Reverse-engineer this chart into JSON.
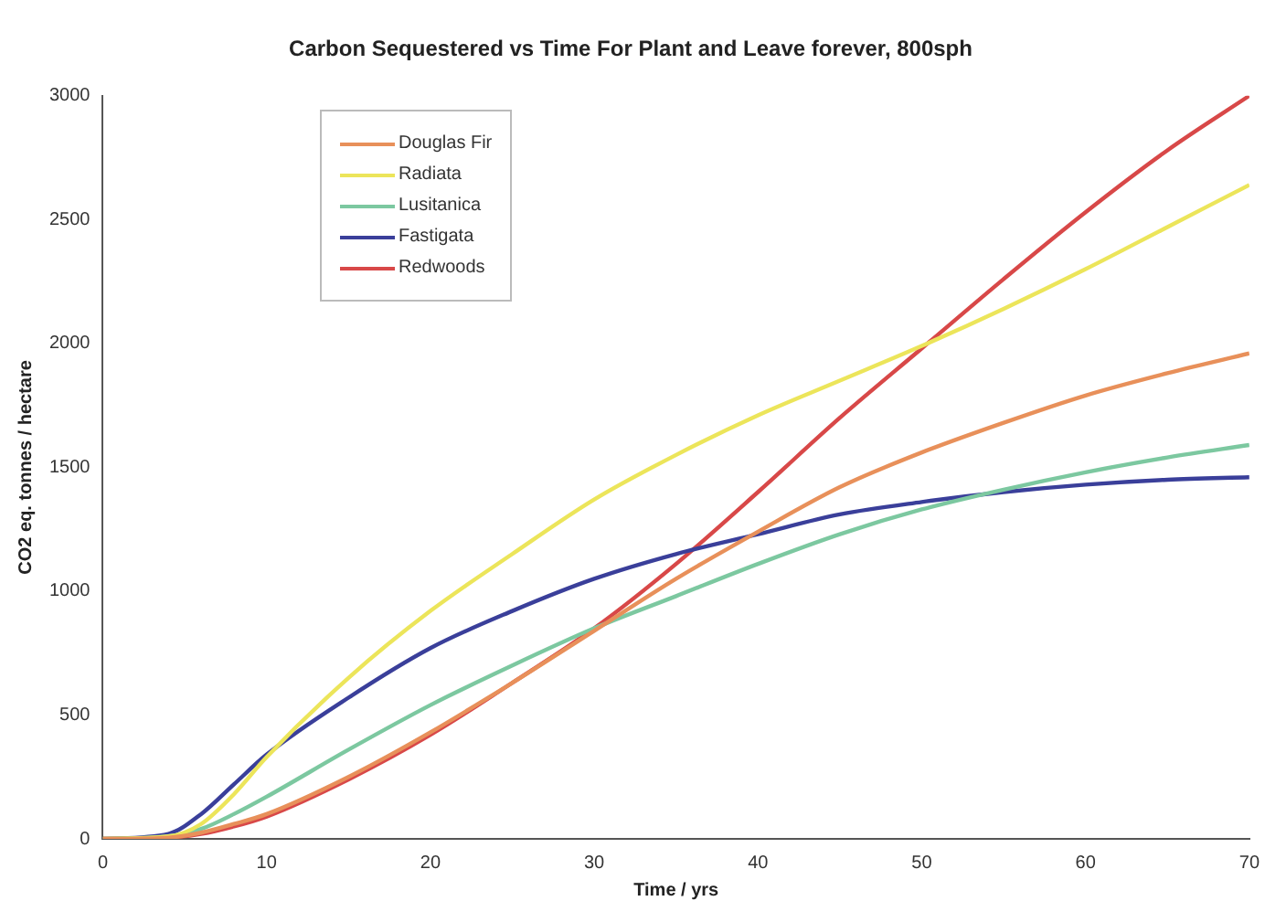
{
  "chart_data": {
    "type": "line",
    "title": "Carbon Sequestered vs Time For Plant and Leave forever, 800sph",
    "xlabel": "Time / yrs",
    "ylabel": "CO2 eq. tonnes / hectare",
    "x": [
      0,
      4,
      6,
      8,
      10,
      15,
      20,
      25,
      30,
      35,
      40,
      45,
      50,
      55,
      60,
      65,
      70
    ],
    "series": [
      {
        "name": "Douglas Fir",
        "color": "#e8905a",
        "values": [
          0,
          5,
          25,
          60,
          100,
          250,
          430,
          630,
          840,
          1050,
          1240,
          1420,
          1560,
          1680,
          1790,
          1880,
          1960
        ]
      },
      {
        "name": "Radiata",
        "color": "#ece55a",
        "values": [
          0,
          10,
          60,
          180,
          330,
          650,
          920,
          1150,
          1370,
          1550,
          1710,
          1850,
          1990,
          2140,
          2300,
          2470,
          2640
        ]
      },
      {
        "name": "Lusitanica",
        "color": "#7cc8a0",
        "values": [
          0,
          10,
          40,
          100,
          170,
          360,
          540,
          700,
          850,
          980,
          1110,
          1230,
          1330,
          1410,
          1480,
          1540,
          1590
        ]
      },
      {
        "name": "Fastigata",
        "color": "#3a3f9a",
        "values": [
          0,
          20,
          100,
          220,
          340,
          570,
          770,
          920,
          1050,
          1150,
          1230,
          1310,
          1360,
          1400,
          1430,
          1450,
          1460
        ]
      },
      {
        "name": "Redwoods",
        "color": "#d84848",
        "values": [
          0,
          5,
          20,
          50,
          90,
          240,
          420,
          630,
          850,
          1110,
          1400,
          1700,
          1980,
          2260,
          2530,
          2780,
          3000
        ]
      }
    ],
    "xlim": [
      0,
      70
    ],
    "xticks": [
      0,
      10,
      20,
      30,
      40,
      50,
      60,
      70
    ],
    "ylim": [
      0,
      3000
    ],
    "yticks": [
      0,
      500,
      1000,
      1500,
      2000,
      2500,
      3000
    ],
    "grid": false,
    "legend": "top left",
    "marker": "none",
    "line_style": "solid"
  }
}
